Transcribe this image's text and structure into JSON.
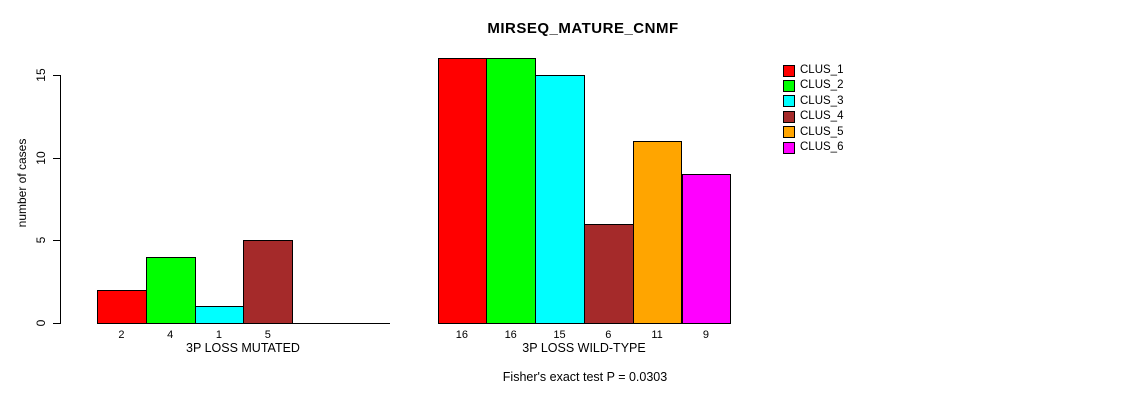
{
  "chart_data": {
    "type": "bar",
    "title": "MIRSEQ_MATURE_CNMF",
    "ylabel": "number of cases",
    "xlabel": "",
    "ylim": [
      0,
      15
    ],
    "yticks": [
      0,
      5,
      10,
      15
    ],
    "grid": false,
    "legend_position": "right",
    "legend": [
      "CLUS_1",
      "CLUS_2",
      "CLUS_3",
      "CLUS_4",
      "CLUS_5",
      "CLUS_6"
    ],
    "colors": [
      "#FF0000",
      "#00FF00",
      "#00FFFF",
      "#A52A2A",
      "#FFA500",
      "#FF00FF"
    ],
    "groups": [
      {
        "label": "3P LOSS MUTATED",
        "values": [
          2,
          4,
          1,
          5,
          0,
          0
        ],
        "bar_labels": [
          "2",
          "4",
          "1",
          "5",
          "",
          ""
        ]
      },
      {
        "label": "3P LOSS WILD-TYPE",
        "values": [
          16,
          16,
          15,
          6,
          11,
          9
        ],
        "bar_labels": [
          "16",
          "16",
          "15",
          "6",
          "11",
          "9"
        ]
      }
    ],
    "annotation": "Fisher's exact test P = 0.0303"
  }
}
